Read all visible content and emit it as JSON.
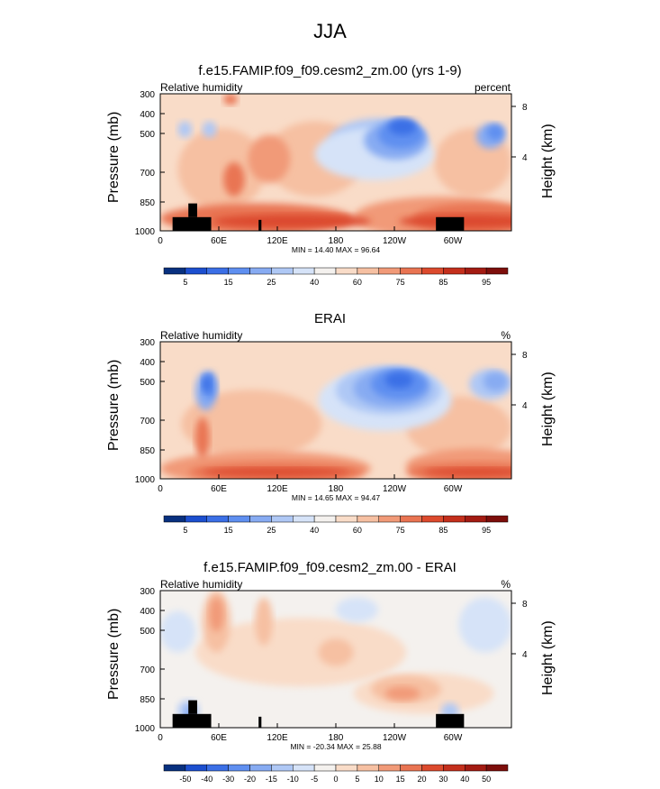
{
  "page_title": "JJA",
  "chart_data": [
    {
      "type": "heatmap",
      "title": "f.e15.FAMIP.f09_f09.cesm2_zm.00 (yrs 1-9)",
      "left_label": "Relative humidity",
      "right_label": "percent",
      "ylabel": "Pressure (mb)",
      "ylabel_right": "Height (km)",
      "x_ticks": [
        "0",
        "60E",
        "120E",
        "180",
        "120W",
        "60W"
      ],
      "y_ticks": [
        "300",
        "400",
        "500",
        "700",
        "850",
        "1000"
      ],
      "y_right_ticks": [
        "8",
        "4"
      ],
      "min_max": "MIN = 14.40  MAX = 96.64",
      "colorbar_labels": [
        "5",
        "15",
        "25",
        "40",
        "60",
        "75",
        "85",
        "95"
      ],
      "colorbar_colors": [
        "#08307f",
        "#1c4fcf",
        "#3b6fe6",
        "#5f8ff0",
        "#87abf2",
        "#afc8f5",
        "#d6e3f8",
        "#f4f1ee",
        "#f9dcc8",
        "#f6c0a2",
        "#f19a78",
        "#e97452",
        "#dc4a2d",
        "#c42f1c",
        "#a31b12",
        "#7d0e0b"
      ],
      "orography": true
    },
    {
      "type": "heatmap",
      "title": "ERAI",
      "left_label": "Relative humidity",
      "right_label": "%",
      "ylabel": "Pressure (mb)",
      "ylabel_right": "Height (km)",
      "x_ticks": [
        "0",
        "60E",
        "120E",
        "180",
        "120W",
        "60W"
      ],
      "y_ticks": [
        "300",
        "400",
        "500",
        "700",
        "850",
        "1000"
      ],
      "y_right_ticks": [
        "8",
        "4"
      ],
      "min_max": "MIN = 14.65  MAX = 94.47",
      "colorbar_labels": [
        "5",
        "15",
        "25",
        "40",
        "60",
        "75",
        "85",
        "95"
      ],
      "colorbar_colors": [
        "#08307f",
        "#1c4fcf",
        "#3b6fe6",
        "#5f8ff0",
        "#87abf2",
        "#afc8f5",
        "#d6e3f8",
        "#f4f1ee",
        "#f9dcc8",
        "#f6c0a2",
        "#f19a78",
        "#e97452",
        "#dc4a2d",
        "#c42f1c",
        "#a31b12",
        "#7d0e0b"
      ],
      "orography": false
    },
    {
      "type": "heatmap",
      "title": "f.e15.FAMIP.f09_f09.cesm2_zm.00 - ERAI",
      "left_label": "Relative humidity",
      "right_label": "%",
      "ylabel": "Pressure (mb)",
      "ylabel_right": "Height (km)",
      "x_ticks": [
        "0",
        "60E",
        "120E",
        "180",
        "120W",
        "60W"
      ],
      "y_ticks": [
        "300",
        "400",
        "500",
        "700",
        "850",
        "1000"
      ],
      "y_right_ticks": [
        "8",
        "4"
      ],
      "min_max": "MIN = -20.34  MAX = 25.88",
      "colorbar_labels": [
        "-50",
        "-40",
        "-30",
        "-20",
        "-15",
        "-10",
        "-5",
        "0",
        "5",
        "10",
        "15",
        "20",
        "30",
        "40",
        "50"
      ],
      "colorbar_colors": [
        "#08307f",
        "#1c4fcf",
        "#3b6fe6",
        "#5f8ff0",
        "#87abf2",
        "#afc8f5",
        "#d6e3f8",
        "#f4f1ee",
        "#f9dcc8",
        "#f6c0a2",
        "#f19a78",
        "#e97452",
        "#dc4a2d",
        "#c42f1c",
        "#a31b12",
        "#7d0e0b"
      ],
      "orography": true
    }
  ]
}
